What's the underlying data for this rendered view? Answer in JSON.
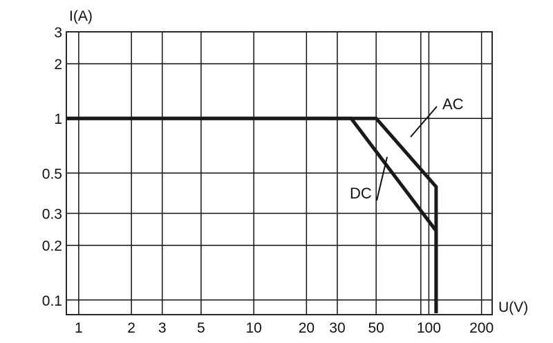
{
  "chart_data": {
    "type": "line",
    "title": "",
    "xlabel": "U(V)",
    "ylabel": "I(A)",
    "x_scale": "log",
    "y_scale": "log",
    "xlim": [
      0.85,
      230
    ],
    "ylim": [
      0.083,
      3
    ],
    "grid": true,
    "x_ticks": [
      1,
      2,
      3,
      5,
      10,
      20,
      30,
      50,
      100,
      200
    ],
    "x_tick_labels": [
      "1",
      "2",
      "3",
      "5",
      "10",
      "20",
      "30",
      "50",
      "100",
      "200"
    ],
    "x_grid_extra": [
      90
    ],
    "y_ticks": [
      0.1,
      0.2,
      0.3,
      0.5,
      1,
      2,
      3
    ],
    "y_tick_labels": [
      "0.1",
      "0.2",
      "0.3",
      "0.5",
      "1",
      "2",
      "3"
    ],
    "series": [
      {
        "name": "AC",
        "x": [
          0.85,
          50,
          110,
          110
        ],
        "y": [
          1,
          1,
          0.42,
          0.075
        ]
      },
      {
        "name": "DC",
        "x": [
          0.85,
          36,
          110,
          110
        ],
        "y": [
          1,
          1,
          0.24,
          0.075
        ]
      }
    ],
    "color": "#1a1a1a"
  }
}
